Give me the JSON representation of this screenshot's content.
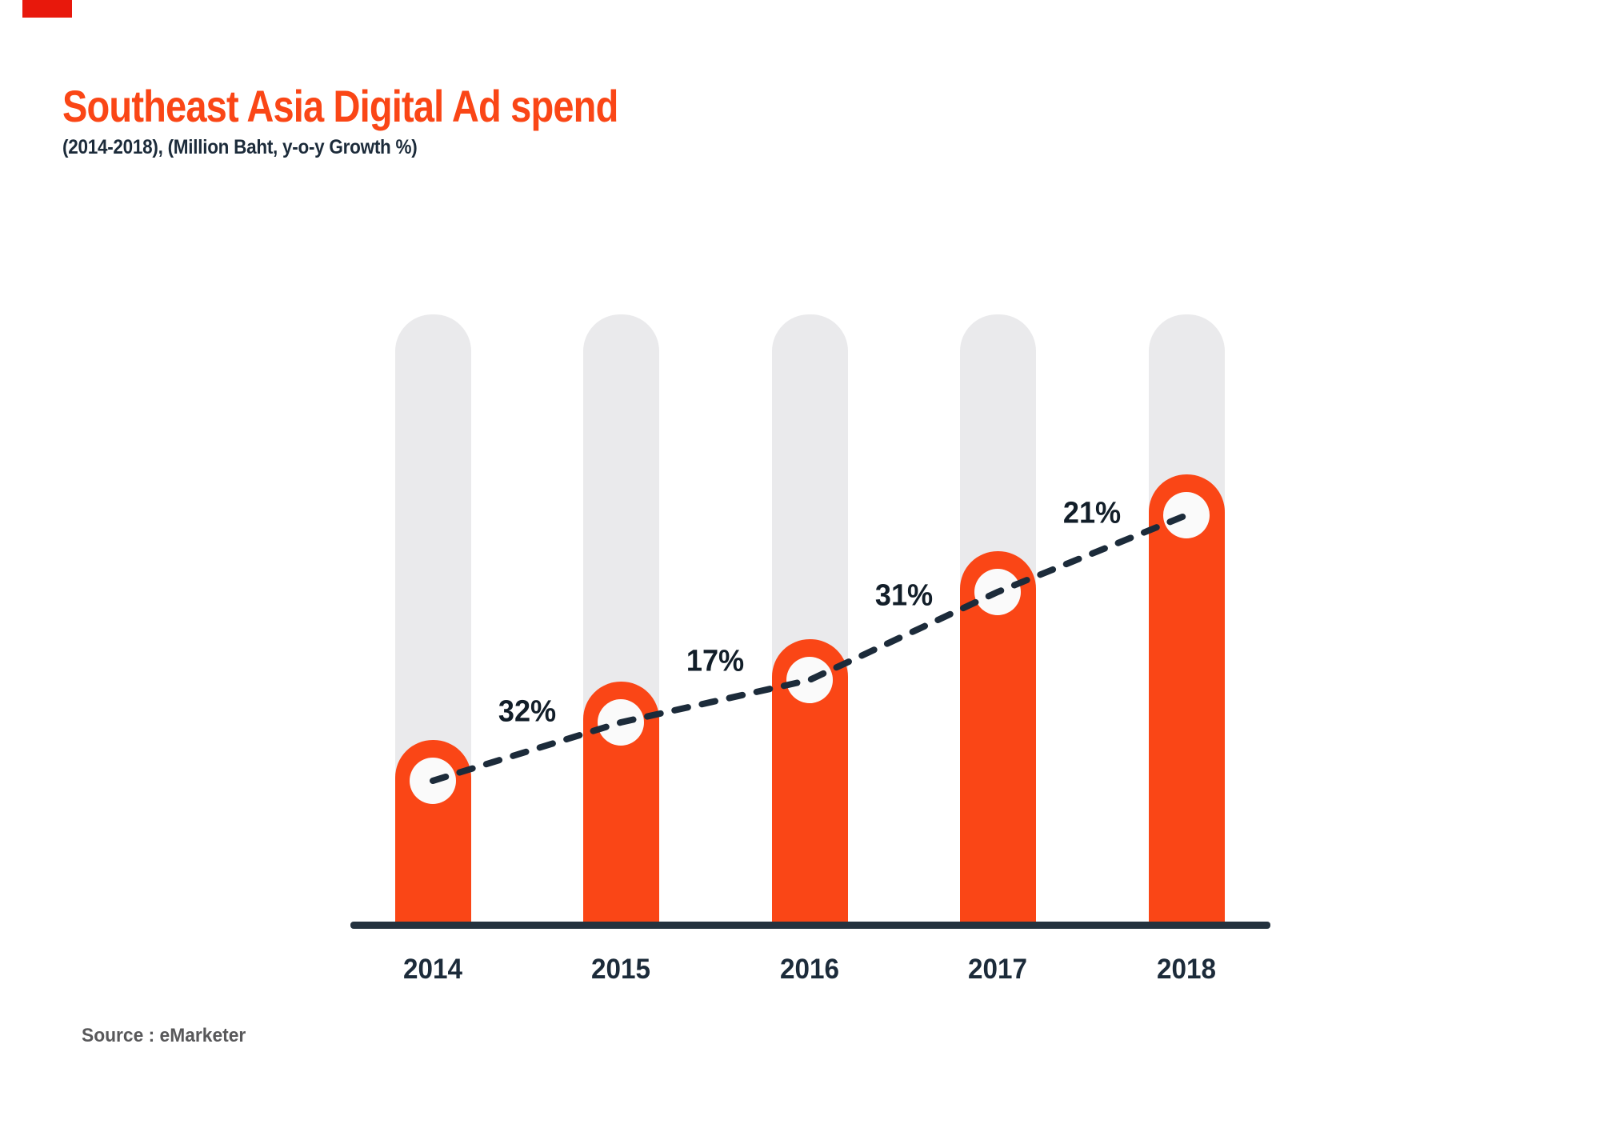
{
  "title": "Southeast Asia Digital Ad spend",
  "subtitle": "(2014-2018), (Million Baht, y-o-y Growth %)",
  "source": "Source : eMarketer",
  "colors": {
    "accent_orange": "#FA4616",
    "corner_mark_red": "#E8180C",
    "track_gray": "#EAEAEC",
    "marker_white": "#FAFAFA",
    "navy_dark": "#1C2B3A",
    "axis_navy": "#24323E",
    "label_ink": "#121E29",
    "source_gray": "#58585A",
    "background": "#FFFFFF"
  },
  "chart_data": {
    "type": "bar",
    "title": "Southeast Asia Digital Ad spend",
    "subtitle": "(2014-2018), (Million Baht, y-o-y Growth %)",
    "categories": [
      "2014",
      "2015",
      "2016",
      "2017",
      "2018"
    ],
    "series": [
      {
        "name": "Digital ad spend (Million Baht, relative index — absolute values not labeled on chart)",
        "values": [
          1.0,
          1.32,
          1.55,
          2.03,
          2.45
        ]
      },
      {
        "name": "y-o-y Growth %",
        "values": [
          null,
          32,
          17,
          31,
          21
        ]
      }
    ],
    "growth_labels": [
      "32%",
      "17%",
      "31%",
      "21%"
    ],
    "legend": "none",
    "grid": "off",
    "trend_line": "dashed navy line through bar markers",
    "x_axis": "years along bottom baseline",
    "y_axis": "not shown"
  }
}
